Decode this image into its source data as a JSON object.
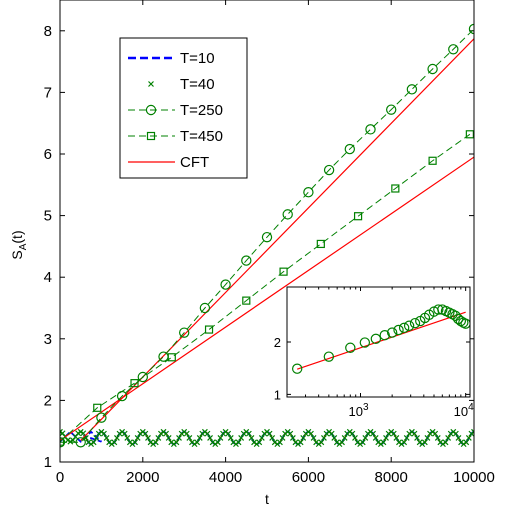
{
  "chart_data": [
    {
      "type": "line",
      "title": "",
      "xlabel": "t",
      "ylabel": "S_A(t)",
      "xlim": [
        0,
        10000
      ],
      "ylim": [
        1,
        8.5
      ],
      "xticks": [
        0,
        2000,
        4000,
        6000,
        8000,
        10000
      ],
      "xtick_labels": [
        "0",
        "2000",
        "4000",
        "6000",
        "8000",
        "10000"
      ],
      "yticks": [
        1,
        2,
        3,
        4,
        5,
        6,
        7,
        8
      ],
      "ytick_labels": [
        "1",
        "2",
        "3",
        "4",
        "5",
        "6",
        "7",
        "8"
      ],
      "grid": false,
      "legend_position": "top-left",
      "oscillation": {
        "baseline": 1.39,
        "amplitude": 0.1,
        "period": 500,
        "t_start": 600,
        "t_end": 10000
      },
      "series": [
        {
          "name": "T=10",
          "marker": "none",
          "style": "dashed",
          "color": "#0000ff",
          "x": [
            0,
            250,
            500,
            750,
            1000
          ],
          "y": [
            1.33,
            1.49,
            1.33,
            1.49,
            1.33
          ]
        },
        {
          "name": "T=40",
          "marker": "x",
          "style": "none",
          "color": "#008000",
          "x": [
            0,
            250,
            500,
            750,
            1000
          ],
          "y": [
            1.33,
            1.49,
            1.33,
            1.49,
            1.33
          ]
        },
        {
          "name": "T=250",
          "marker": "circle",
          "style": "dashed",
          "color": "#008000",
          "x": [
            0,
            500,
            1000,
            1500,
            2000,
            2500,
            3000,
            3500,
            4000,
            4500,
            5000,
            5500,
            6000,
            6500,
            7000,
            7500,
            8000,
            8500,
            9000,
            9500,
            10000
          ],
          "y": [
            1.32,
            1.32,
            1.72,
            2.07,
            2.38,
            2.71,
            3.1,
            3.5,
            3.88,
            4.27,
            4.65,
            5.02,
            5.38,
            5.74,
            6.08,
            6.4,
            6.72,
            7.05,
            7.38,
            7.7,
            8.03
          ]
        },
        {
          "name": "T=450",
          "marker": "square",
          "style": "dashed",
          "color": "#008000",
          "x": [
            0,
            900,
            1800,
            2700,
            3600,
            4500,
            5400,
            6300,
            7200,
            8100,
            9000,
            9900
          ],
          "y": [
            1.33,
            1.88,
            2.28,
            2.7,
            3.15,
            3.62,
            4.09,
            4.54,
            4.99,
            5.44,
            5.89,
            6.32
          ]
        },
        {
          "name": "CFT",
          "marker": "none",
          "style": "solid",
          "color": "#ff0000",
          "lines": [
            {
              "x": [
                0,
                10000
              ],
              "y": [
                1.35,
                5.95
              ]
            },
            {
              "x": [
                500,
                10000
              ],
              "y": [
                1.35,
                7.87
              ]
            }
          ]
        }
      ]
    },
    {
      "type": "scatter",
      "title": "",
      "xlabel": "",
      "ylabel": "",
      "xscale": "log",
      "xlim": [
        200,
        11000
      ],
      "ylim": [
        0.95,
        3.05
      ],
      "yticks": [
        1,
        2
      ],
      "ytick_labels": [
        "1",
        "2"
      ],
      "xticks": [
        1000,
        10000
      ],
      "xtick_labels": [
        {
          "base": "10",
          "exp": "3"
        },
        {
          "base": "10",
          "exp": "4"
        }
      ],
      "series": [
        {
          "name": "",
          "marker": "circle",
          "color": "#008000",
          "x": [
            250,
            500,
            800,
            1100,
            1400,
            1700,
            2000,
            2300,
            2600,
            2900,
            3300,
            3700,
            4100,
            4500,
            5000,
            5500,
            6000,
            6500,
            7000,
            7500,
            8000,
            8500,
            9000,
            9500,
            10000
          ],
          "y": [
            1.49,
            1.72,
            1.89,
            1.99,
            2.06,
            2.13,
            2.18,
            2.23,
            2.27,
            2.31,
            2.36,
            2.4,
            2.46,
            2.52,
            2.58,
            2.62,
            2.62,
            2.59,
            2.56,
            2.53,
            2.5,
            2.44,
            2.4,
            2.37,
            2.35
          ]
        },
        {
          "name": "",
          "marker": "none",
          "style": "solid",
          "color": "#ff0000",
          "x": [
            250,
            10000
          ],
          "y": [
            1.48,
            2.57
          ]
        }
      ]
    }
  ]
}
